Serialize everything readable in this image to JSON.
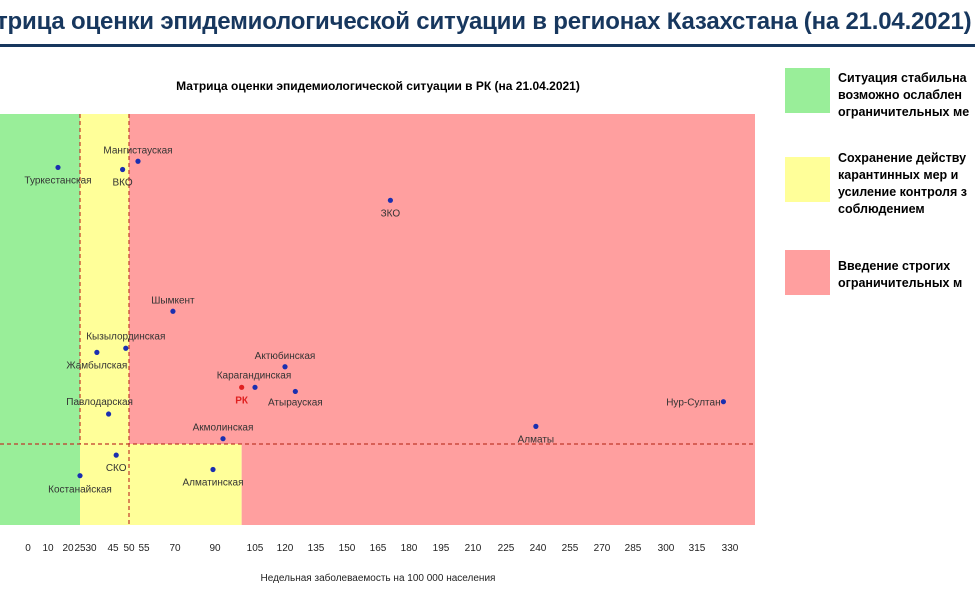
{
  "slide_title": "трица оценки эпидемиологической ситуации в регионах Казахстана (на 21.04.2021)",
  "legend": [
    {
      "text": "Ситуация стабильна\nвозможно ослаблен\nограничительных ме",
      "color": "#99ee99"
    },
    {
      "text": "Сохранение действу\nкарантинных мер и\nусиление контроля з\nсоблюдением",
      "color": "#ffff99"
    },
    {
      "text": "Введение строгих\nограничительных м",
      "color": "#ff9f9f"
    }
  ],
  "chart_data": {
    "type": "scatter",
    "title": "Матрица оценки эпидемиологической ситуации в РК (на 21.04.2021)",
    "xlabel": "Недельная заболеваемость на 100 000 населения",
    "ylabel": "",
    "x_ticks": [
      "0",
      "10",
      "20",
      "25",
      "30",
      "45",
      "50",
      "55",
      "70",
      "90",
      "105",
      "120",
      "135",
      "150",
      "165",
      "180",
      "195",
      "210",
      "225",
      "240",
      "255",
      "270",
      "285",
      "300",
      "315",
      "330"
    ],
    "zones": [
      {
        "name": "green",
        "color": "#99ee99"
      },
      {
        "name": "yellow",
        "color": "#ffff99"
      },
      {
        "name": "red",
        "color": "#ff9f9f"
      }
    ],
    "thresholds": {
      "x1": 25,
      "x2": 50,
      "x_lower_red": 100
    },
    "points": [
      {
        "label": "Туркестанская",
        "x": 15,
        "y": 0.87
      },
      {
        "label": "Мангистауская",
        "x": 53,
        "y": 0.885
      },
      {
        "label": "ВКО",
        "x": 48,
        "y": 0.865
      },
      {
        "label": "ЗКО",
        "x": 171,
        "y": 0.79
      },
      {
        "label": "Шымкент",
        "x": 69,
        "y": 0.52
      },
      {
        "label": "Кызылординская",
        "x": 49,
        "y": 0.43
      },
      {
        "label": "Жамбылская",
        "x": 34,
        "y": 0.42
      },
      {
        "label": "Актюбинская",
        "x": 120,
        "y": 0.385
      },
      {
        "label": "Карагандинская",
        "x": 105,
        "y": 0.335
      },
      {
        "label": "РК",
        "x": 100,
        "y": 0.335,
        "highlight": true
      },
      {
        "label": "Атырауская",
        "x": 125,
        "y": 0.325
      },
      {
        "label": "Павлодарская",
        "x": 42,
        "y": 0.27
      },
      {
        "label": "Нур-Султан",
        "x": 327,
        "y": 0.3
      },
      {
        "label": "Алматы",
        "x": 239,
        "y": 0.24
      },
      {
        "label": "Акмолинская",
        "x": 93,
        "y": 0.21
      },
      {
        "label": "СКО",
        "x": 46,
        "y": 0.17
      },
      {
        "label": "Алматинская",
        "x": 89,
        "y": 0.135
      },
      {
        "label": "Костанайская",
        "x": 25,
        "y": 0.12
      }
    ]
  }
}
